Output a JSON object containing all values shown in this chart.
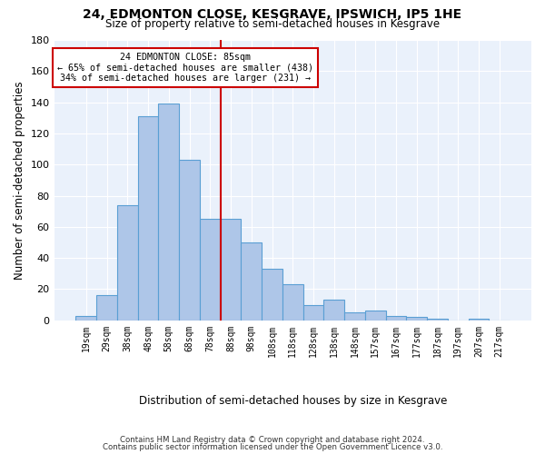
{
  "title": "24, EDMONTON CLOSE, KESGRAVE, IPSWICH, IP5 1HE",
  "subtitle": "Size of property relative to semi-detached houses in Kesgrave",
  "xlabel": "Distribution of semi-detached houses by size in Kesgrave",
  "ylabel": "Number of semi-detached properties",
  "bin_labels": [
    "19sqm",
    "29sqm",
    "38sqm",
    "48sqm",
    "58sqm",
    "68sqm",
    "78sqm",
    "88sqm",
    "98sqm",
    "108sqm",
    "118sqm",
    "128sqm",
    "138sqm",
    "148sqm",
    "157sqm",
    "167sqm",
    "177sqm",
    "187sqm",
    "197sqm",
    "207sqm",
    "217sqm"
  ],
  "bar_heights": [
    3,
    16,
    74,
    131,
    139,
    103,
    65,
    65,
    50,
    33,
    23,
    10,
    13,
    5,
    6,
    3,
    2,
    1,
    0,
    1,
    0
  ],
  "bar_color": "#aec6e8",
  "bar_edge_color": "#5a9fd4",
  "vline_x": 6,
  "vline_color": "#cc0000",
  "annotation_line1": "24 EDMONTON CLOSE: 85sqm",
  "annotation_line2": "← 65% of semi-detached houses are smaller (438)",
  "annotation_line3": "34% of semi-detached houses are larger (231) →",
  "annotation_box_color": "#ffffff",
  "annotation_box_edge": "#cc0000",
  "ylim": [
    0,
    180
  ],
  "yticks": [
    0,
    20,
    40,
    60,
    80,
    100,
    120,
    140,
    160,
    180
  ],
  "footer1": "Contains HM Land Registry data © Crown copyright and database right 2024.",
  "footer2": "Contains public sector information licensed under the Open Government Licence v3.0."
}
